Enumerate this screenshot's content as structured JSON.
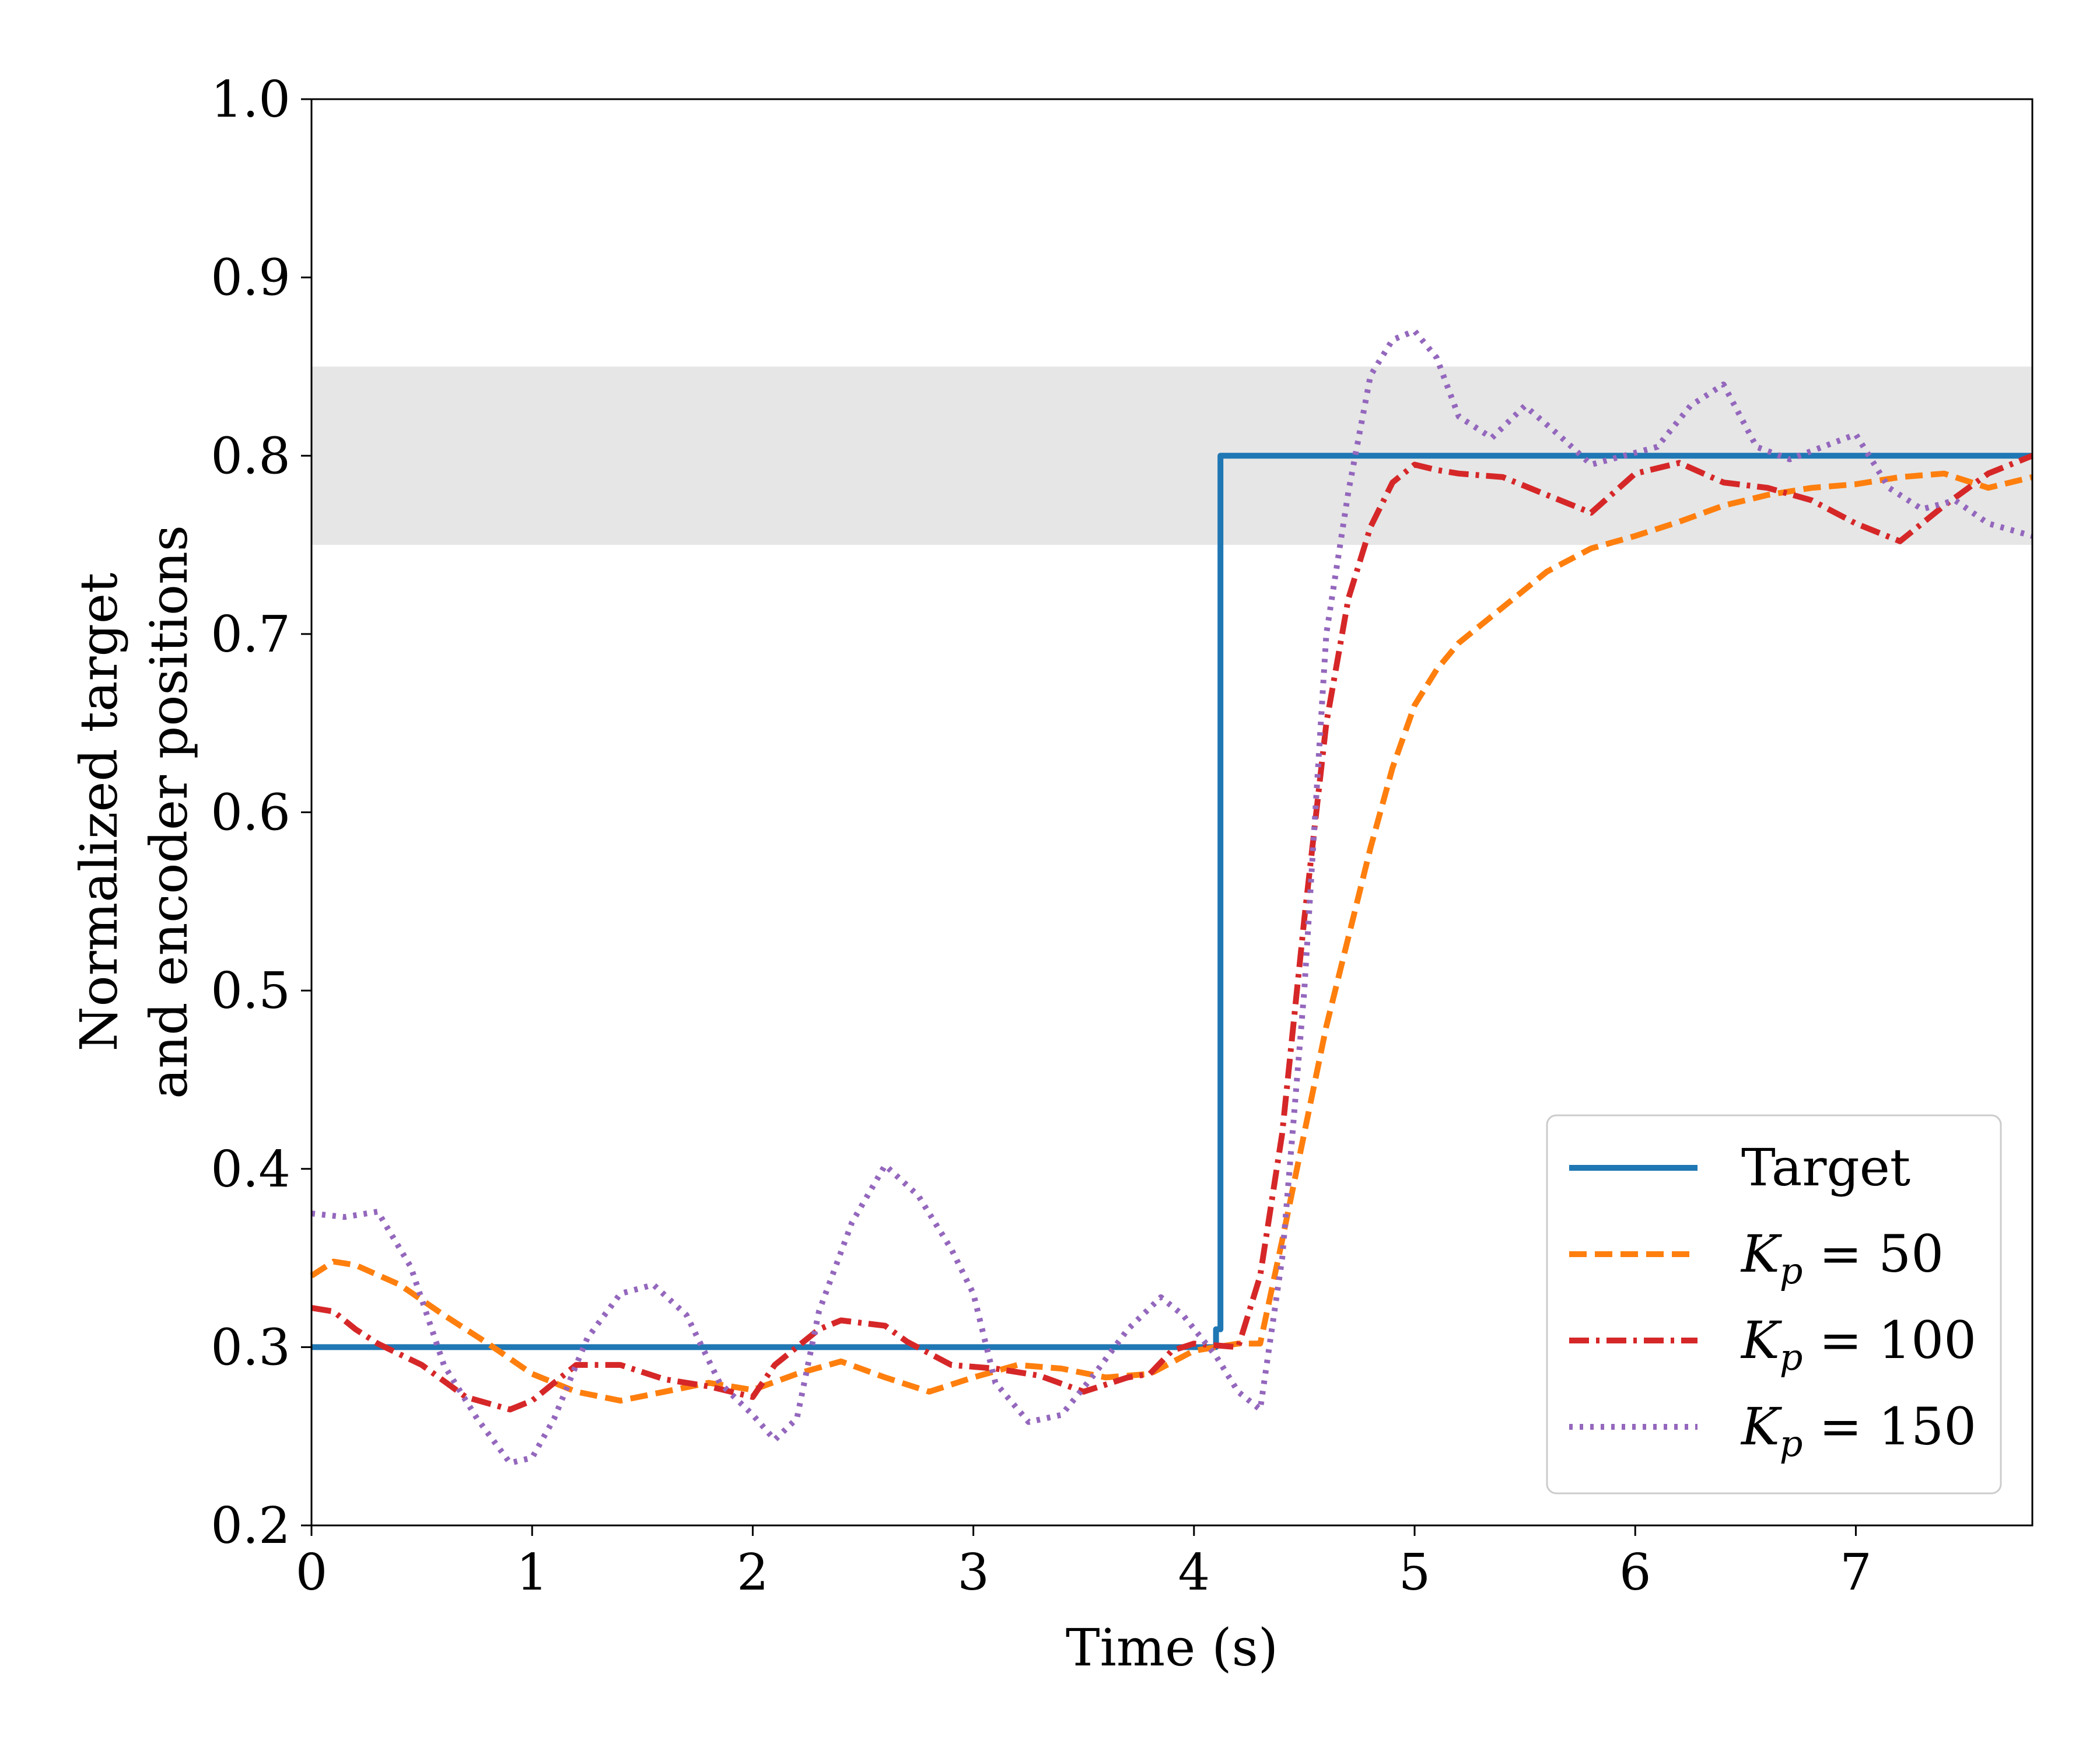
{
  "chart_data": {
    "type": "line",
    "title": "",
    "xlabel": "Time (s)",
    "ylabel_lines": [
      "Normalized target",
      "and encoder positions"
    ],
    "xlim": [
      0,
      7.8
    ],
    "ylim": [
      0.2,
      1.0
    ],
    "xticks": [
      0,
      1,
      2,
      3,
      4,
      5,
      6,
      7
    ],
    "yticks": [
      0.2,
      0.3,
      0.4,
      0.5,
      0.6,
      0.7,
      0.8,
      0.9,
      1.0
    ],
    "xtick_labels": [
      "0",
      "1",
      "2",
      "3",
      "4",
      "5",
      "6",
      "7"
    ],
    "ytick_labels": [
      "0.2",
      "0.3",
      "0.4",
      "0.5",
      "0.6",
      "0.7",
      "0.8",
      "0.9",
      "1.0"
    ],
    "band": {
      "y0": 0.75,
      "y1": 0.85,
      "color": "#e6e6e6"
    },
    "legend_position": "lower-right",
    "series": [
      {
        "name": "Target",
        "legend_main": "Target",
        "legend_sub": "",
        "legend_rest": "",
        "color": "#1f77b4",
        "dash": "solid",
        "x": [
          0,
          4.1,
          4.1,
          4.12,
          4.12,
          7.8
        ],
        "y": [
          0.3,
          0.3,
          0.31,
          0.31,
          0.8,
          0.8
        ]
      },
      {
        "name": "K_p = 50",
        "legend_main": "K",
        "legend_sub": "p",
        "legend_rest": " = 50",
        "color": "#ff7f0e",
        "dash": "dashed",
        "x": [
          0,
          0.1,
          0.2,
          0.4,
          0.6,
          0.8,
          1.0,
          1.2,
          1.4,
          1.6,
          1.8,
          2.0,
          2.2,
          2.4,
          2.6,
          2.8,
          3.0,
          3.2,
          3.4,
          3.6,
          3.8,
          4.0,
          4.2,
          4.3,
          4.4,
          4.5,
          4.6,
          4.7,
          4.8,
          4.9,
          5.0,
          5.1,
          5.2,
          5.4,
          5.6,
          5.8,
          6.0,
          6.2,
          6.4,
          6.6,
          6.8,
          7.0,
          7.2,
          7.4,
          7.6,
          7.8
        ],
        "y": [
          0.34,
          0.348,
          0.346,
          0.335,
          0.318,
          0.302,
          0.285,
          0.275,
          0.27,
          0.275,
          0.28,
          0.276,
          0.285,
          0.292,
          0.283,
          0.275,
          0.283,
          0.29,
          0.288,
          0.283,
          0.285,
          0.298,
          0.302,
          0.302,
          0.36,
          0.42,
          0.48,
          0.53,
          0.58,
          0.625,
          0.66,
          0.68,
          0.695,
          0.715,
          0.735,
          0.748,
          0.755,
          0.763,
          0.772,
          0.778,
          0.782,
          0.784,
          0.788,
          0.79,
          0.782,
          0.788
        ]
      },
      {
        "name": "K_p = 100",
        "legend_main": "K",
        "legend_sub": "p",
        "legend_rest": " = 100",
        "color": "#d62728",
        "dash": "dashdot",
        "x": [
          0,
          0.1,
          0.2,
          0.3,
          0.5,
          0.7,
          0.9,
          1.0,
          1.1,
          1.2,
          1.4,
          1.6,
          1.8,
          2.0,
          2.1,
          2.3,
          2.4,
          2.6,
          2.7,
          2.9,
          3.1,
          3.3,
          3.5,
          3.7,
          3.8,
          3.9,
          4.0,
          4.2,
          4.3,
          4.4,
          4.5,
          4.6,
          4.7,
          4.8,
          4.9,
          5.0,
          5.1,
          5.2,
          5.4,
          5.6,
          5.8,
          6.0,
          6.2,
          6.4,
          6.6,
          6.8,
          7.0,
          7.2,
          7.4,
          7.6,
          7.8
        ],
        "y": [
          0.322,
          0.32,
          0.31,
          0.302,
          0.29,
          0.272,
          0.265,
          0.27,
          0.28,
          0.29,
          0.29,
          0.282,
          0.278,
          0.272,
          0.29,
          0.31,
          0.315,
          0.312,
          0.303,
          0.29,
          0.288,
          0.284,
          0.275,
          0.283,
          0.285,
          0.298,
          0.302,
          0.3,
          0.34,
          0.42,
          0.54,
          0.65,
          0.72,
          0.76,
          0.785,
          0.795,
          0.792,
          0.79,
          0.788,
          0.778,
          0.768,
          0.79,
          0.796,
          0.785,
          0.782,
          0.775,
          0.762,
          0.752,
          0.772,
          0.79,
          0.8
        ]
      },
      {
        "name": "K_p = 150",
        "legend_main": "K",
        "legend_sub": "p",
        "legend_rest": " = 150",
        "color": "#9467bd",
        "dash": "dotted",
        "x": [
          0,
          0.15,
          0.3,
          0.45,
          0.6,
          0.75,
          0.9,
          1.0,
          1.1,
          1.25,
          1.4,
          1.55,
          1.7,
          1.85,
          2.0,
          2.1,
          2.2,
          2.3,
          2.45,
          2.6,
          2.75,
          2.9,
          3.0,
          3.1,
          3.25,
          3.4,
          3.55,
          3.7,
          3.85,
          3.95,
          4.1,
          4.2,
          4.3,
          4.4,
          4.5,
          4.6,
          4.7,
          4.8,
          4.9,
          5.0,
          5.1,
          5.2,
          5.35,
          5.5,
          5.65,
          5.8,
          5.95,
          6.1,
          6.25,
          6.4,
          6.55,
          6.7,
          6.85,
          7.0,
          7.15,
          7.3,
          7.45,
          7.6,
          7.8
        ],
        "y": [
          0.375,
          0.373,
          0.376,
          0.345,
          0.29,
          0.26,
          0.235,
          0.238,
          0.26,
          0.305,
          0.33,
          0.335,
          0.318,
          0.28,
          0.262,
          0.248,
          0.26,
          0.32,
          0.37,
          0.402,
          0.385,
          0.355,
          0.33,
          0.28,
          0.258,
          0.262,
          0.285,
          0.31,
          0.328,
          0.318,
          0.295,
          0.275,
          0.265,
          0.35,
          0.5,
          0.7,
          0.78,
          0.845,
          0.865,
          0.87,
          0.855,
          0.822,
          0.81,
          0.828,
          0.812,
          0.795,
          0.8,
          0.805,
          0.828,
          0.84,
          0.805,
          0.798,
          0.805,
          0.812,
          0.782,
          0.77,
          0.775,
          0.762,
          0.755
        ]
      }
    ]
  }
}
